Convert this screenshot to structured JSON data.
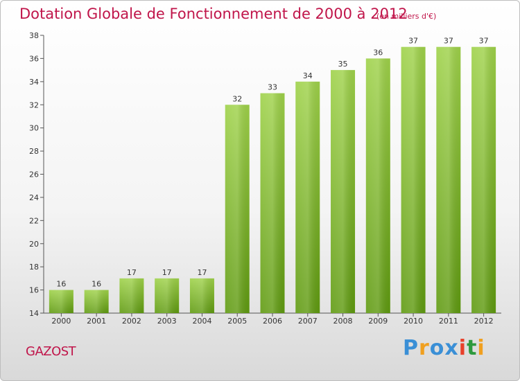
{
  "title": "Dotation Globale de Fonctionnement de 2000 à 2012",
  "subtitle": "(en milliers d'€)",
  "commune": "GAZOST",
  "logo": {
    "text": "Proxiti",
    "letters": [
      "P",
      "r",
      "o",
      "x",
      "i",
      "t",
      "i"
    ],
    "colors": [
      "#3a8fd6",
      "#f0a020",
      "#3a8fd6",
      "#3a8fd6",
      "#e8402a",
      "#2e9a3e",
      "#f0a020"
    ]
  },
  "chart_data": {
    "type": "bar",
    "categories": [
      "2000",
      "2001",
      "2002",
      "2003",
      "2004",
      "2005",
      "2006",
      "2007",
      "2008",
      "2009",
      "2010",
      "2011",
      "2012"
    ],
    "values": [
      16,
      16,
      17,
      17,
      17,
      32,
      33,
      34,
      35,
      36,
      37,
      37,
      37
    ],
    "ylim": [
      14,
      38
    ],
    "yticks": [
      14,
      16,
      18,
      20,
      22,
      24,
      26,
      28,
      30,
      32,
      34,
      36,
      38
    ],
    "grid": false,
    "bar_color_top": "#9fd24a",
    "bar_color_bottom": "#5f9a10"
  }
}
